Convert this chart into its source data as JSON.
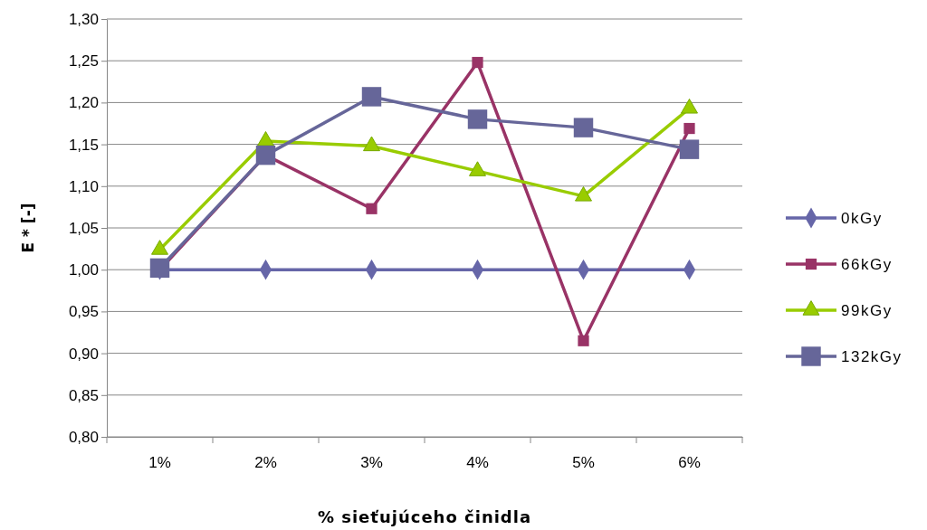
{
  "chart_data": {
    "type": "line",
    "xlabel": "% sieťujúceho činidla",
    "ylabel": "E * [-]",
    "categories": [
      "1%",
      "2%",
      "3%",
      "4%",
      "5%",
      "6%"
    ],
    "ylim": [
      0.8,
      1.3
    ],
    "yticks": [
      {
        "value": 0.8,
        "label": "0,80"
      },
      {
        "value": 0.85,
        "label": "0,85"
      },
      {
        "value": 0.9,
        "label": "0,90"
      },
      {
        "value": 0.95,
        "label": "0,95"
      },
      {
        "value": 1.0,
        "label": "1,00"
      },
      {
        "value": 1.05,
        "label": "1,05"
      },
      {
        "value": 1.1,
        "label": "1,10"
      },
      {
        "value": 1.15,
        "label": "1,15"
      },
      {
        "value": 1.2,
        "label": "1,20"
      },
      {
        "value": 1.25,
        "label": "1,25"
      },
      {
        "value": 1.3,
        "label": "1,30"
      }
    ],
    "grid": "y",
    "legend": "right",
    "line_style": "solid",
    "series": [
      {
        "name": "0kGy",
        "color": "#6666a8",
        "marker": "diamond",
        "values": [
          1.0,
          1.0,
          1.0,
          1.0,
          1.0,
          1.0
        ]
      },
      {
        "name": "66kGy",
        "color": "#993366",
        "marker": "square",
        "values": [
          1.0,
          1.137,
          1.073,
          1.248,
          0.915,
          1.169
        ]
      },
      {
        "name": "99kGy",
        "color": "#99cc00",
        "marker": "triangle",
        "values": [
          1.024,
          1.154,
          1.148,
          1.118,
          1.088,
          1.193
        ]
      },
      {
        "name": "132kGy",
        "color": "#666699",
        "marker": "square",
        "values": [
          1.002,
          1.137,
          1.207,
          1.18,
          1.17,
          1.144
        ]
      }
    ]
  }
}
